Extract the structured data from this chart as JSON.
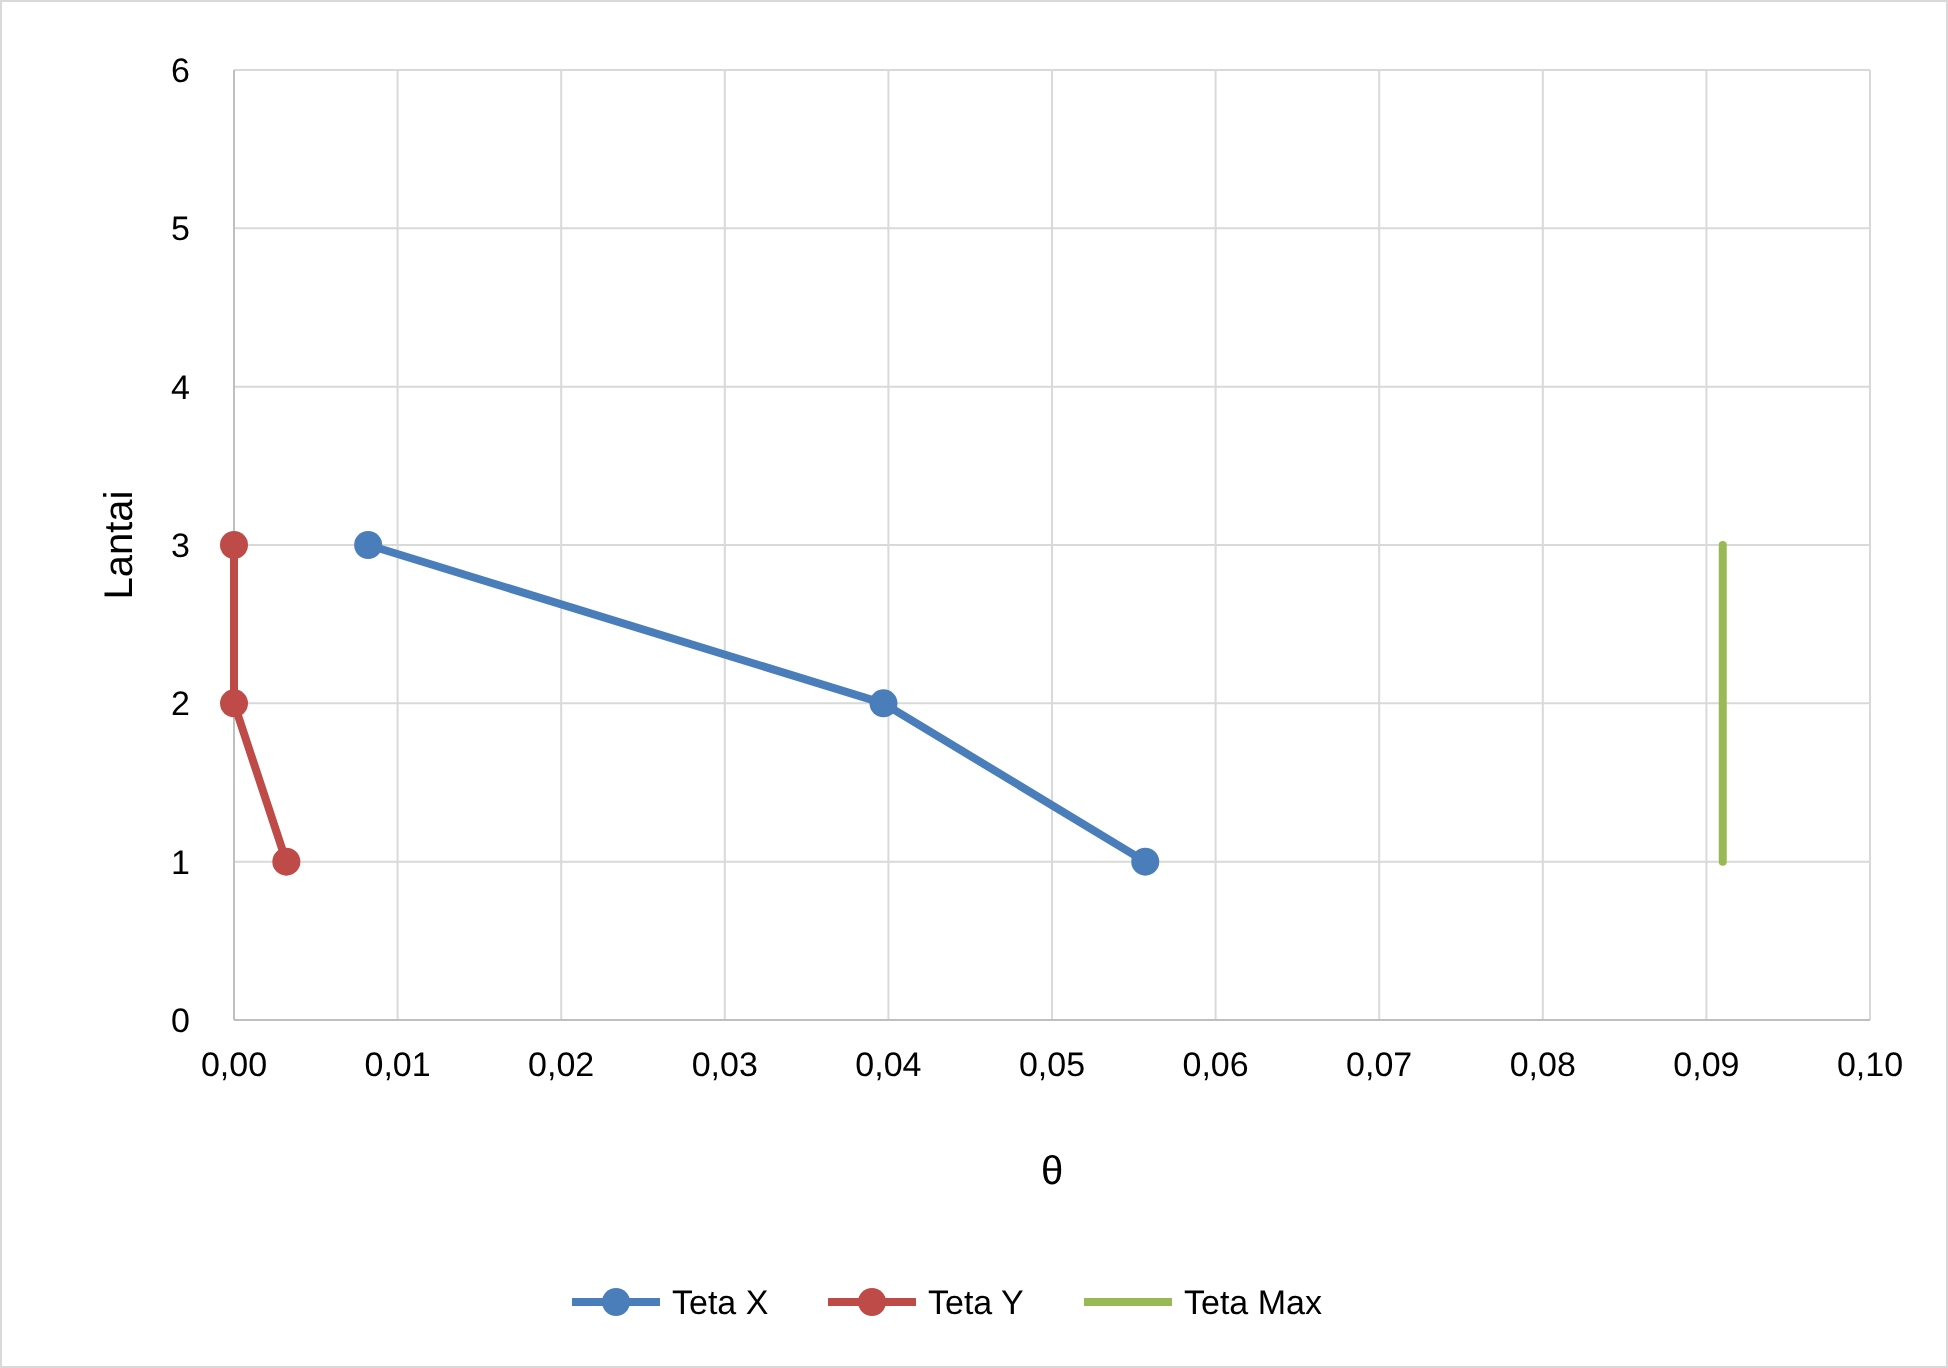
{
  "chart_data": {
    "type": "line",
    "xlabel": "θ",
    "ylabel": "Lantai",
    "xlim": [
      0,
      0.1
    ],
    "xticks": [
      {
        "value": 0,
        "label": "0,00"
      },
      {
        "value": 0.01,
        "label": "0,01"
      },
      {
        "value": 0.02,
        "label": "0,02"
      },
      {
        "value": 0.03,
        "label": "0,03"
      },
      {
        "value": 0.04,
        "label": "0,04"
      },
      {
        "value": 0.05,
        "label": "0,05"
      },
      {
        "value": 0.06,
        "label": "0,06"
      },
      {
        "value": 0.07,
        "label": "0,07"
      },
      {
        "value": 0.08,
        "label": "0,08"
      },
      {
        "value": 0.09,
        "label": "0,09"
      },
      {
        "value": 0.1,
        "label": "0,10"
      }
    ],
    "ylim": [
      0,
      6
    ],
    "yticks": [
      0,
      1,
      2,
      3,
      4,
      5,
      6
    ],
    "grid": true,
    "legend": "bottom",
    "marker": "circle",
    "series": [
      {
        "name": "Teta X",
        "color": "#4a7ebb",
        "x": [
          0.0082,
          0.0397,
          0.0557
        ],
        "values": [
          3,
          2,
          1
        ]
      },
      {
        "name": "Teta Y",
        "color": "#be4b48",
        "x": [
          0,
          0,
          0.0032
        ],
        "values": [
          3,
          2,
          1
        ]
      },
      {
        "name": "Teta Max",
        "color": "#98b954",
        "marker": "none",
        "x": [
          0.091,
          0.091,
          0.091
        ],
        "values": [
          3,
          2,
          1
        ]
      }
    ]
  }
}
